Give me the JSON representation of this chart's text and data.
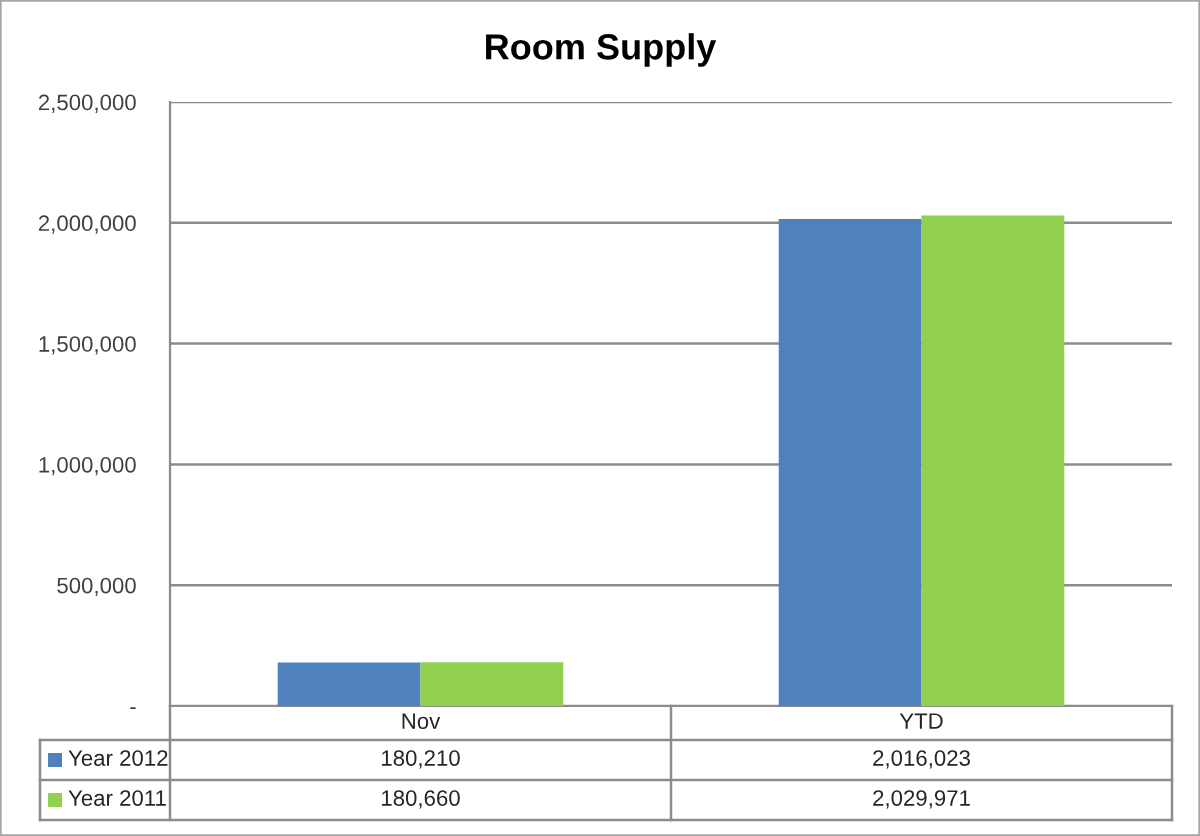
{
  "chart_data": {
    "type": "bar",
    "title": "Room Supply",
    "categories": [
      "Nov",
      "YTD"
    ],
    "series": [
      {
        "name": "Year 2012",
        "color": "#4f81bd",
        "values": [
          180210,
          2016023
        ],
        "value_labels": [
          "180,210",
          "2,016,023"
        ]
      },
      {
        "name": "Year 2011",
        "color": "#92d050",
        "values": [
          180660,
          2029971
        ],
        "value_labels": [
          "180,660",
          "2,029,971"
        ]
      }
    ],
    "ylim": [
      0,
      2500000
    ],
    "yticks": [
      {
        "value": 0,
        "label": "-"
      },
      {
        "value": 500000,
        "label": "500,000"
      },
      {
        "value": 1000000,
        "label": "1,000,000"
      },
      {
        "value": 1500000,
        "label": "1,500,000"
      },
      {
        "value": 2000000,
        "label": "2,000,000"
      },
      {
        "value": 2500000,
        "label": "2,500,000"
      }
    ],
    "grid": "y",
    "legend": "bottom"
  }
}
